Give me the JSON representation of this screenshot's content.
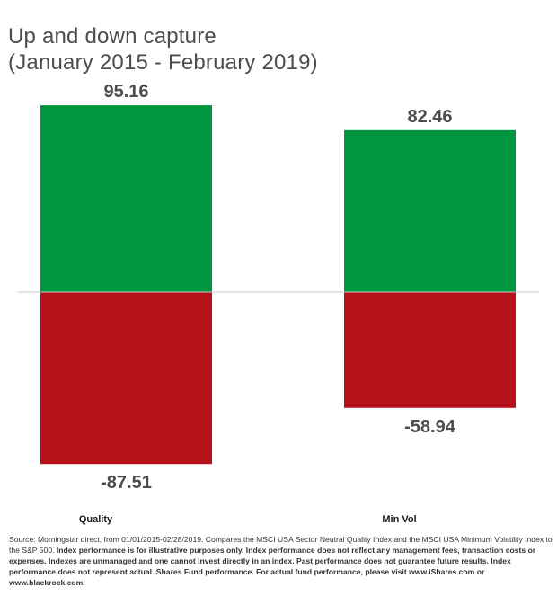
{
  "chart_data": {
    "type": "bar",
    "title": "Up and down capture",
    "subtitle": "(January 2015 - February 2019)",
    "categories": [
      "Quality",
      "Min Vol"
    ],
    "series": [
      {
        "name": "",
        "values": [
          95.16,
          82.46
        ]
      },
      {
        "name": "",
        "values": [
          -87.51,
          -58.94
        ]
      }
    ],
    "value_labels_up": [
      "95.16",
      "82.46"
    ],
    "value_labels_down": [
      "-87.51",
      "-58.94"
    ],
    "xlabel": "",
    "ylabel": "",
    "ylim": [
      -100,
      100
    ],
    "grid": false,
    "legend": "none",
    "colors": {
      "up": "#009640",
      "down": "#b5121b",
      "zero_line": "#c8c8c8"
    }
  },
  "footnote": {
    "regular": "Source: Morningstar direct, from 01/01/2015-02/28/2019. Compares the MSCI USA Sector Neutral Quality Index and the MSCI USA Minimum Volatility Index to the S&P 500.",
    "bold": "Index performance is for illustrative purposes only.  Index performance does not reflect any management fees, transaction costs or expenses. Indexes are unmanaged and one cannot invest directly in an index. Past performance does not guarantee future results. Index performance does not represent actual iShares Fund performance. For actual fund performance, please visit www.iShares.com or www.blackrock.com."
  }
}
